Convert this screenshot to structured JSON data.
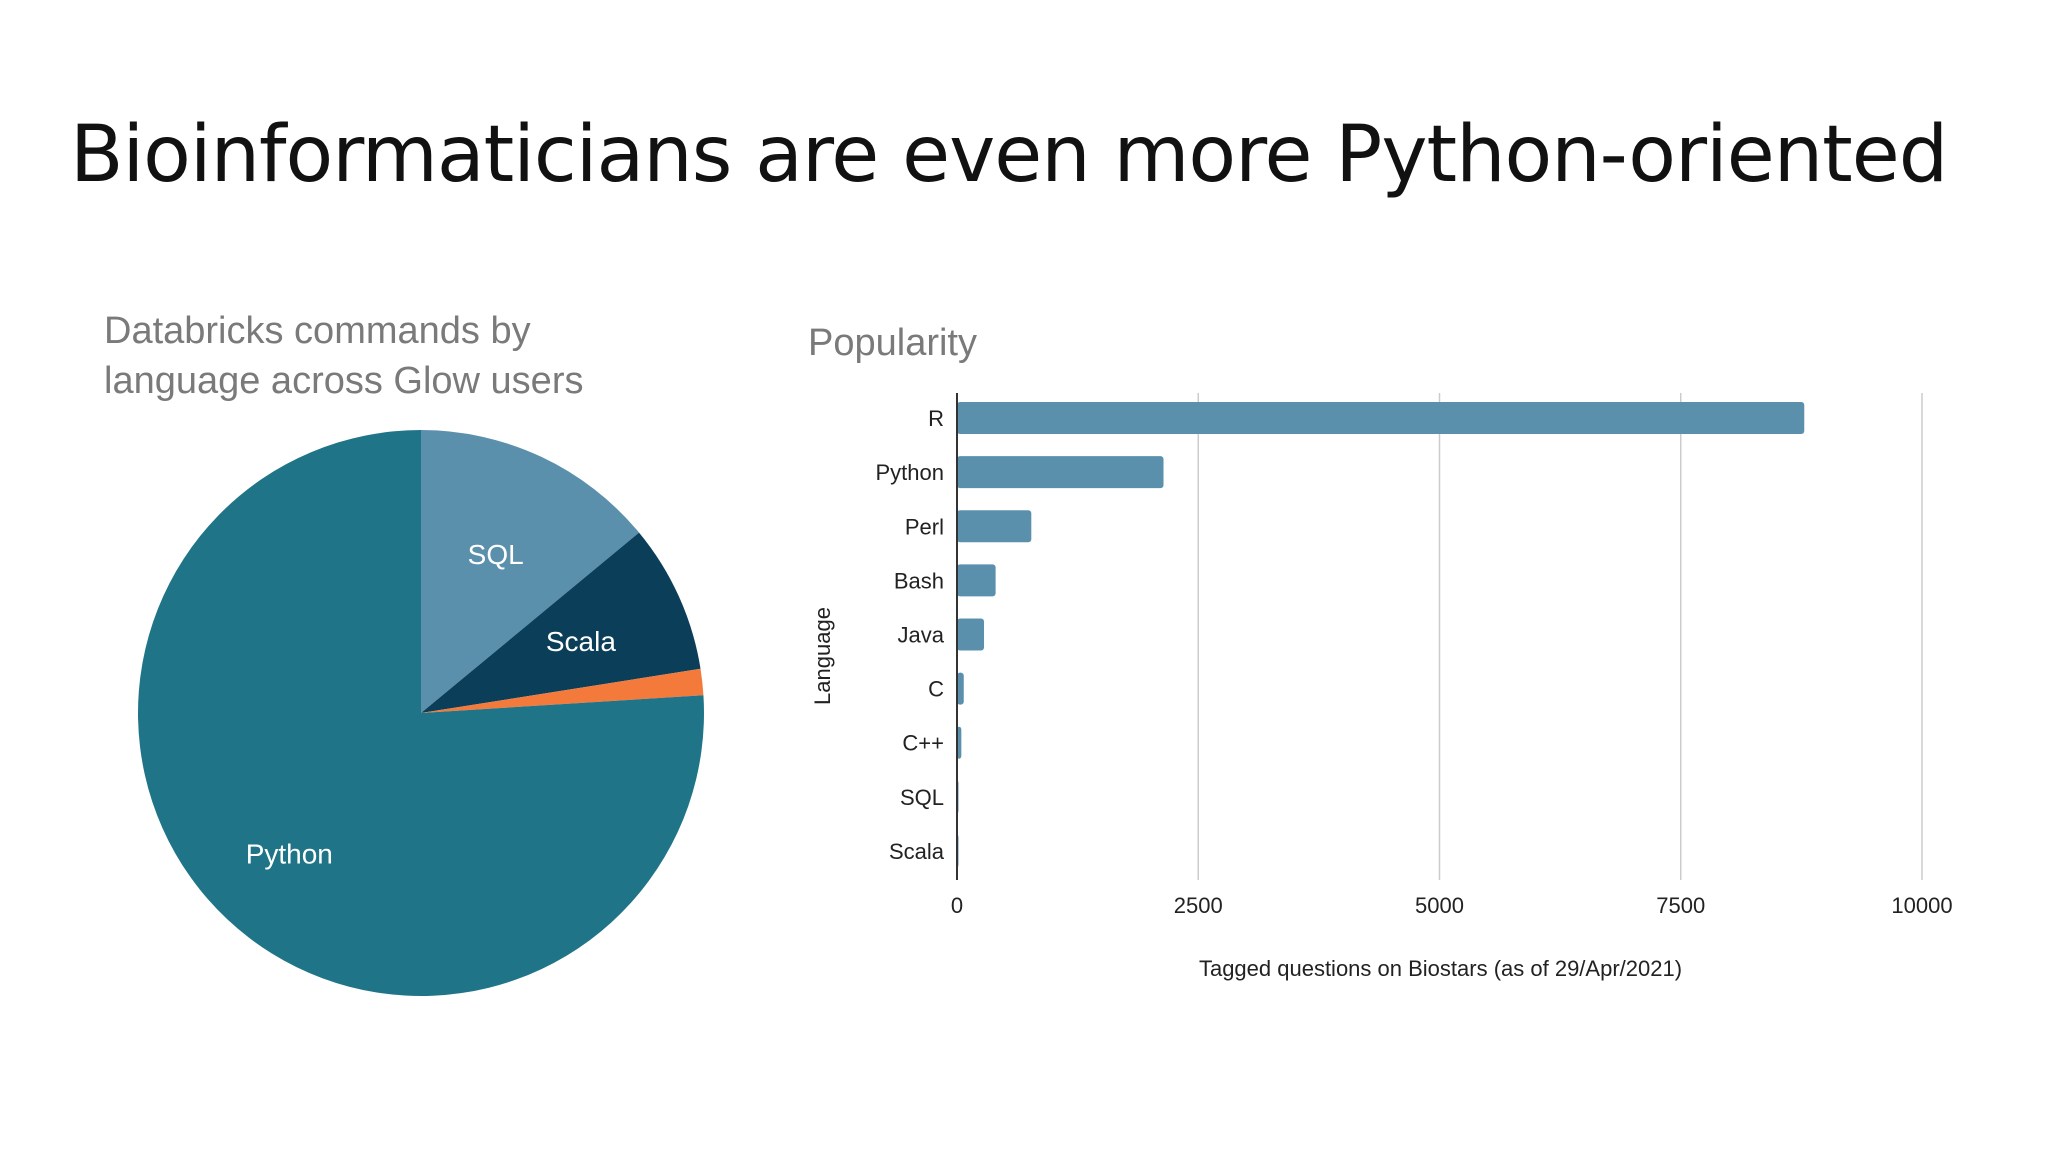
{
  "slide": {
    "title": "Bioinformaticians are even more Python-oriented"
  },
  "chart_data": [
    {
      "type": "pie",
      "title": "Databricks commands by language across Glow users",
      "title_lines": [
        "Databricks commands by",
        "language across Glow users"
      ],
      "slices": [
        {
          "label": "SQL",
          "value": 14,
          "color": "#5b90ad"
        },
        {
          "label": "Scala",
          "value": 8.5,
          "color": "#0b3e59"
        },
        {
          "label": "",
          "value": 1.5,
          "color": "#f47a3c"
        },
        {
          "label": "Python",
          "value": 76,
          "color": "#1f7587"
        }
      ],
      "start_angle": "top, clockwise"
    },
    {
      "type": "bar",
      "orientation": "horizontal",
      "title": "Popularity",
      "categories": [
        "R",
        "Python",
        "Perl",
        "Bash",
        "Java",
        "C",
        "C++",
        "SQL",
        "Scala"
      ],
      "values": [
        8780,
        2140,
        770,
        400,
        280,
        70,
        45,
        15,
        3
      ],
      "xlabel": "Tagged questions on Biostars (as of 29/Apr/2021)",
      "ylabel": "Language",
      "xlim": [
        0,
        10000
      ],
      "xticks": [
        "0",
        "2500",
        "5000",
        "7500",
        "10000"
      ],
      "grid": "vertical",
      "bar_color": "#5b90ad"
    }
  ]
}
